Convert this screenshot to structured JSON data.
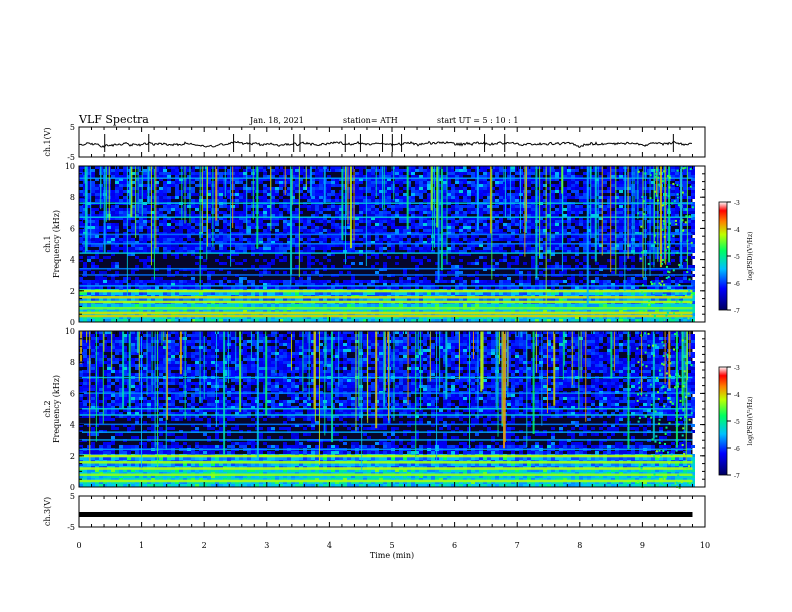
{
  "header": {
    "title": "VLF Spectra",
    "date": "Jan. 18, 2021",
    "station": "station= ATH",
    "start": "start  UT =   5  : 10 : 1"
  },
  "chart_data": [
    {
      "type": "line",
      "title": "",
      "ylabel": "ch.1(V)",
      "ylim": [
        -5,
        5
      ],
      "yticks": [
        "5",
        "-5"
      ],
      "xlim": [
        0,
        10
      ],
      "series": [
        {
          "baseline": 0,
          "noise_amplitude": 0.6,
          "trace_end": 9.8
        }
      ]
    },
    {
      "type": "heatmap",
      "ylabel": "ch.1\nFrequency (kHz)",
      "ylim": [
        0,
        10
      ],
      "yticks": [
        "0",
        "2",
        "4",
        "6",
        "8",
        "10"
      ],
      "xlim": [
        0,
        9.8
      ],
      "colorbar": {
        "label": "log(PSD)(V²/Hz)",
        "ticks": [
          "-3",
          "-4",
          "-5",
          "-6",
          "-7"
        ],
        "range": [
          -7,
          -3
        ]
      },
      "bands_khz": [
        0.4,
        0.6,
        0.9,
        1.3,
        1.6,
        2.0,
        2.3,
        3.0,
        3.4,
        4.4,
        5.0,
        5.6,
        6.7,
        7.6,
        9.2
      ],
      "note_feature_after_min": 8.9
    },
    {
      "type": "heatmap",
      "ylabel": "ch.2\nFrequency (kHz)",
      "ylim": [
        0,
        10
      ],
      "yticks": [
        "0",
        "2",
        "4",
        "6",
        "8",
        "10"
      ],
      "xlim": [
        0,
        9.8
      ],
      "colorbar": {
        "label": "log(PSD)(V²/Hz)",
        "ticks": [
          "-3",
          "-4",
          "-5",
          "-6",
          "-7"
        ],
        "range": [
          -7,
          -3
        ]
      },
      "bands_khz": [
        0.4,
        0.8,
        1.2,
        1.6,
        2.0,
        2.4,
        3.0,
        3.5,
        4.0,
        4.6,
        5.0,
        6.0,
        7.0
      ],
      "note_feature_after_min": 8.9
    },
    {
      "type": "line",
      "ylabel": "ch.3(V)",
      "ylim": [
        -5,
        5
      ],
      "yticks": [
        "5",
        "-5"
      ],
      "xlim": [
        0,
        10
      ],
      "series": [
        {
          "baseline": 0,
          "noise_amplitude": 0.1,
          "trace_end": 9.8
        }
      ]
    }
  ],
  "x_axis": {
    "label": "Time (min)",
    "ticks": [
      "0",
      "1",
      "2",
      "3",
      "4",
      "5",
      "6",
      "7",
      "8",
      "9",
      "10"
    ]
  }
}
